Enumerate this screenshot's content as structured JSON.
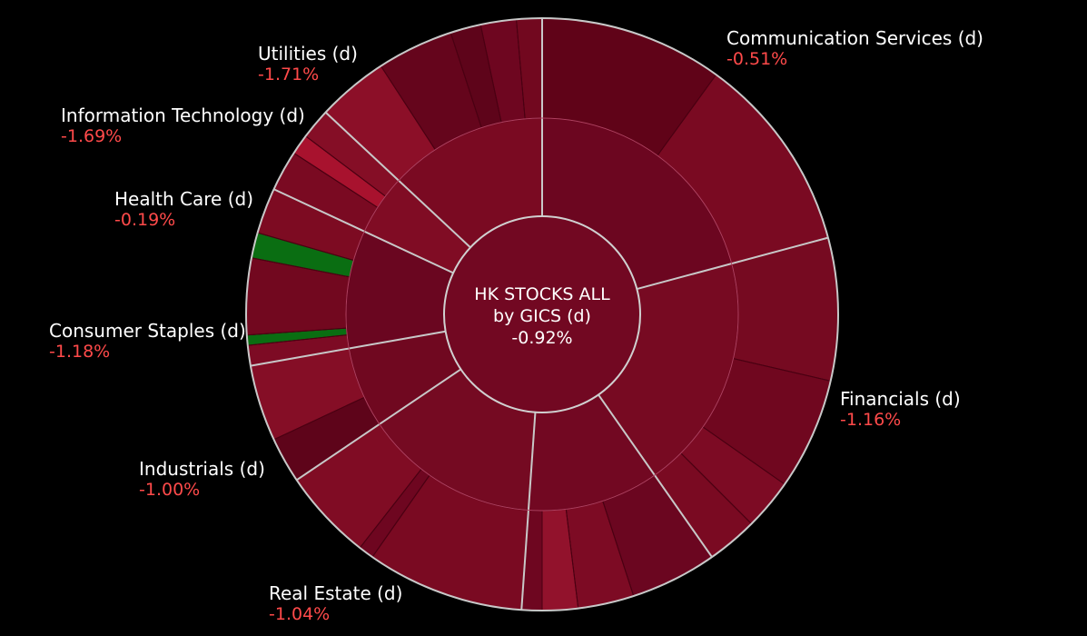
{
  "chart_data": {
    "type": "sunburst",
    "title": "HK STOCKS ALL",
    "subtitle": "by GICS (d)",
    "total_change": "-0.92%",
    "colors": {
      "background": "#000000",
      "negative_text": "#ff4a4a",
      "ring_stroke": "#c8c8c8",
      "strong_negative": "#a8122e",
      "negative": "#7d0b22",
      "weak_negative": "#5e031a",
      "positive": "#0a6e12"
    },
    "sectors": [
      {
        "name": "Communication Services (d)",
        "change": "-0.51%",
        "start_deg": 0,
        "end_deg": 75,
        "color": "#6c0620",
        "outer": [
          {
            "to": 36,
            "color": "#600318"
          },
          {
            "to": 75,
            "color": "#7a0a22"
          }
        ]
      },
      {
        "name": "Financials (d)",
        "change": "-1.16%",
        "start_deg": 75,
        "end_deg": 145,
        "color": "#770a22",
        "outer": [
          {
            "to": 103,
            "color": "#760a21"
          },
          {
            "to": 125,
            "color": "#70071f"
          },
          {
            "to": 135,
            "color": "#7d0b24"
          },
          {
            "to": 145,
            "color": "#7a0a22"
          }
        ]
      },
      {
        "name": "Real Estate (d)",
        "change": "-1.04%",
        "start_deg": 145,
        "end_deg": 184,
        "color": "#720822",
        "outer": [
          {
            "to": 162,
            "color": "#6b0620"
          },
          {
            "to": 173,
            "color": "#7d0b24"
          },
          {
            "to": 180,
            "color": "#92122c"
          },
          {
            "to": 184,
            "color": "#6e0620"
          }
        ]
      },
      {
        "name": "Industrials (d)",
        "change": "-1.00%",
        "start_deg": 184,
        "end_deg": 236,
        "color": "#750a22",
        "outer": [
          {
            "to": 215,
            "color": "#7a0a22"
          },
          {
            "to": 218,
            "color": "#6e0620"
          },
          {
            "to": 236,
            "color": "#800c24"
          }
        ]
      },
      {
        "name": "Consumer Staples (d)",
        "change": "-1.18%",
        "start_deg": 236,
        "end_deg": 260,
        "color": "#700820",
        "outer": [
          {
            "to": 245,
            "color": "#5e041a"
          },
          {
            "to": 260,
            "color": "#850e26"
          }
        ]
      },
      {
        "name": "Health Care (d)",
        "change": "-0.19%",
        "start_deg": 260,
        "end_deg": 295,
        "color": "#6a0620",
        "outer": [
          {
            "to": 264,
            "color": "#7d0b24"
          },
          {
            "to": 266,
            "color": "#0a6e12"
          },
          {
            "to": 281,
            "color": "#72081f"
          },
          {
            "to": 286,
            "color": "#0a6e12"
          },
          {
            "to": 295,
            "color": "#7d0b22"
          }
        ]
      },
      {
        "name": "Information Technology (d)",
        "change": "-1.69%",
        "start_deg": 295,
        "end_deg": 313,
        "color": "#800c24",
        "outer": [
          {
            "to": 303,
            "color": "#7a0a22"
          },
          {
            "to": 307,
            "color": "#a8122e"
          },
          {
            "to": 313,
            "color": "#850e26"
          }
        ]
      },
      {
        "name": "Utilities (d)",
        "change": "-1.71%",
        "start_deg": 313,
        "end_deg": 360,
        "color": "#7a0a22",
        "outer": [
          {
            "to": 327,
            "color": "#8c0f28"
          },
          {
            "to": 342,
            "color": "#65051c"
          },
          {
            "to": 348,
            "color": "#5e041a"
          },
          {
            "to": 355,
            "color": "#6e0620"
          },
          {
            "to": 360,
            "color": "#72081f"
          }
        ]
      }
    ]
  }
}
